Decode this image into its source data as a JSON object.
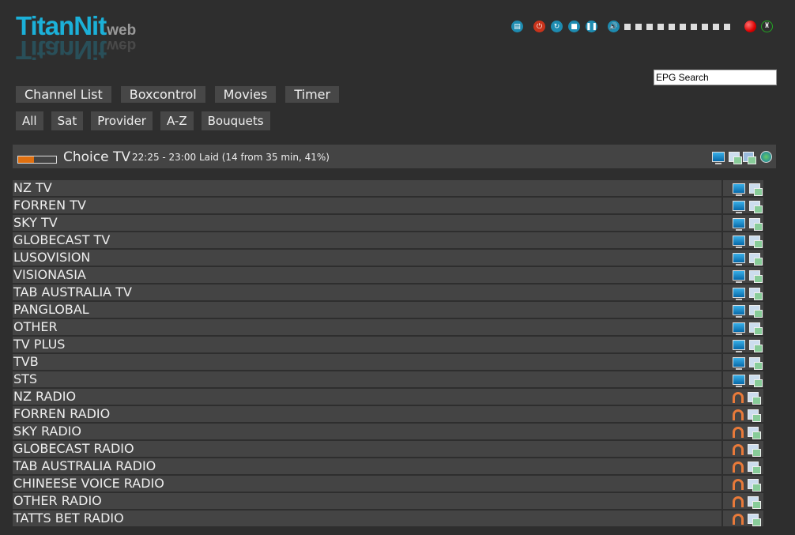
{
  "logo": {
    "main": "TitanNit",
    "sub": "web"
  },
  "controls": [
    {
      "icon": "remote-icon"
    },
    {
      "icon": "power-icon"
    },
    {
      "icon": "restart-icon"
    },
    {
      "icon": "stop-icon"
    },
    {
      "icon": "pause-icon"
    },
    {
      "icon": "volume-icon"
    }
  ],
  "volume_level": {
    "steps": 10
  },
  "search": {
    "value": "EPG Search"
  },
  "nav": [
    "Channel List",
    "Boxcontrol",
    "Movies",
    "Timer"
  ],
  "filters": [
    "All",
    "Sat",
    "Provider",
    "A-Z",
    "Bouquets"
  ],
  "current": {
    "channel": "Choice TV",
    "info": "22:25 - 23:00 Laid (14 from 35 min, 41%)",
    "progress": 41
  },
  "colors": {
    "accent": "#1bb0d8",
    "progress": "#e07010"
  },
  "bouquets": [
    {
      "name": "NZ TV",
      "type": "tv"
    },
    {
      "name": "FORREN TV",
      "type": "tv"
    },
    {
      "name": "SKY TV",
      "type": "tv"
    },
    {
      "name": "GLOBECAST TV",
      "type": "tv"
    },
    {
      "name": "LUSOVISION",
      "type": "tv"
    },
    {
      "name": "VISIONASIA",
      "type": "tv"
    },
    {
      "name": "TAB AUSTRALIA TV",
      "type": "tv"
    },
    {
      "name": "PANGLOBAL",
      "type": "tv"
    },
    {
      "name": "OTHER",
      "type": "tv"
    },
    {
      "name": "TV PLUS",
      "type": "tv"
    },
    {
      "name": "TVB",
      "type": "tv"
    },
    {
      "name": "STS",
      "type": "tv"
    },
    {
      "name": "NZ RADIO",
      "type": "radio"
    },
    {
      "name": "FORREN RADIO",
      "type": "radio"
    },
    {
      "name": "SKY RADIO",
      "type": "radio"
    },
    {
      "name": "GLOBECAST RADIO",
      "type": "radio"
    },
    {
      "name": "TAB AUSTRALIA RADIO",
      "type": "radio"
    },
    {
      "name": "CHINEESE VOICE RADIO",
      "type": "radio"
    },
    {
      "name": "OTHER RADIO",
      "type": "radio"
    },
    {
      "name": "TATTS BET RADIO",
      "type": "radio"
    }
  ]
}
